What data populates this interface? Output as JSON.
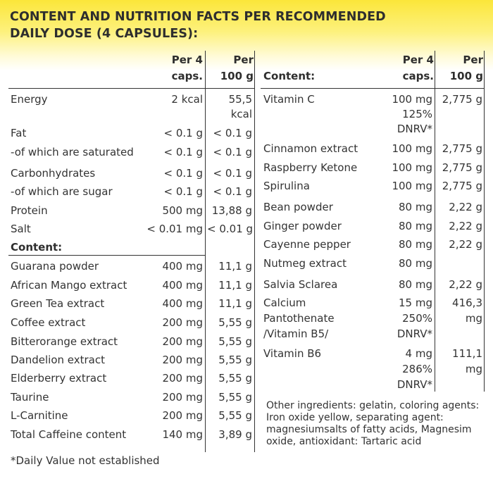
{
  "title": {
    "line1": "CONTENT AND NUTRITION FACTS PER RECOMMENDED",
    "line2": "DAILY DOSE (4 CAPSULES):"
  },
  "left_header": {
    "col1_line1": "Per 4",
    "col1_line2": "caps.",
    "col2_line1": "Per",
    "col2_line2": "100 g"
  },
  "nutrition": [
    {
      "name": "Energy",
      "per_dose": "2 kcal",
      "per_100g": "55,5",
      "per_100g_line2": "kcal"
    },
    {
      "name": "Fat",
      "per_dose": "< 0.1 g",
      "per_100g": "< 0.1 g"
    },
    {
      "name": "-of which are saturated",
      "per_dose": "< 0.1 g",
      "per_100g": "< 0.1 g"
    },
    {
      "name": "Carbonhydrates",
      "per_dose": "< 0.1 g",
      "per_100g": "< 0.1 g"
    },
    {
      "name": "-of which are sugar",
      "per_dose": "< 0.1 g",
      "per_100g": "< 0.1 g"
    },
    {
      "name": "Protein",
      "per_dose": "500 mg",
      "per_100g": "13,88 g"
    },
    {
      "name": "Salt",
      "per_dose": "< 0.01 mg",
      "per_100g": "< 0.01 g"
    }
  ],
  "left_content_label": "Content:",
  "left_content": [
    {
      "name": "Guarana powder",
      "per_dose": "400 mg",
      "per_100g": "11,1 g"
    },
    {
      "name": "African Mango extract",
      "per_dose": "400 mg",
      "per_100g": "11,1 g"
    },
    {
      "name": "Green Tea extract",
      "per_dose": "400 mg",
      "per_100g": "11,1 g"
    },
    {
      "name": "Coffee extract",
      "per_dose": "200 mg",
      "per_100g": "5,55 g"
    },
    {
      "name": "Bitterorange extract",
      "per_dose": "200 mg",
      "per_100g": "5,55 g"
    },
    {
      "name": "Dandelion extract",
      "per_dose": "200 mg",
      "per_100g": "5,55 g"
    },
    {
      "name": "Elderberry extract",
      "per_dose": "200 mg",
      "per_100g": "5,55 g"
    },
    {
      "name": "Taurine",
      "per_dose": "200 mg",
      "per_100g": "5,55 g"
    },
    {
      "name": "L-Carnitine",
      "per_dose": "200 mg",
      "per_100g": "5,55 g"
    },
    {
      "name": "Total Caffeine content",
      "per_dose": "140 mg",
      "per_100g": "3,89 g"
    }
  ],
  "footnote": "*Daily Value not established",
  "right_header": {
    "label": "Content:",
    "col1_line1": "Per 4",
    "col1_line2": "caps.",
    "col2_line1": "Per",
    "col2_line2": "100 g"
  },
  "right_content": [
    {
      "name": "Vitamin C",
      "per_dose": "100 mg",
      "per_dose_line2": "125%",
      "per_dose_line3": "DNRV*",
      "per_100g": "2,775 g"
    },
    {
      "name": "Cinnamon extract",
      "per_dose": "100 mg",
      "per_100g": "2,775 g"
    },
    {
      "name": "Raspberry Ketone",
      "per_dose": "100 mg",
      "per_100g": "2,775 g"
    },
    {
      "name": "Spirulina",
      "per_dose": "100 mg",
      "per_100g": "2,775 g"
    },
    {
      "name": "Bean powder",
      "per_dose": "80 mg",
      "per_100g": "2,22 g"
    },
    {
      "name": "Ginger powder",
      "per_dose": "80 mg",
      "per_100g": "2,22 g"
    },
    {
      "name": "Cayenne pepper",
      "per_dose": "80 mg",
      "per_100g": "2,22 g"
    },
    {
      "name": "Nutmeg extract",
      "per_dose": "80 mg",
      "per_100g": ""
    },
    {
      "name": "Salvia Sclarea",
      "per_dose": "80 mg",
      "per_100g": "2,22 g"
    },
    {
      "name": "Calcium",
      "per_dose": "15 mg",
      "per_100g": "416,3"
    },
    {
      "name": "Pantothenate",
      "name_line2": "/Vitamin B5/",
      "per_dose": "250%",
      "per_dose_line2": "DNRV*",
      "per_100g": "mg"
    },
    {
      "name": "Vitamin B6",
      "per_dose": "4 mg",
      "per_dose_line2": "286%",
      "per_dose_line3": "DNRV*",
      "per_100g": "111,1",
      "per_100g_line2": "mg"
    }
  ],
  "other_ingredients": "Other ingredients: gelatin, coloring agents: Iron oxide yellow, separating agent:  magnesiumsalts of fatty acids, Magnesim oxide, antioxidant: Tartaric acid"
}
